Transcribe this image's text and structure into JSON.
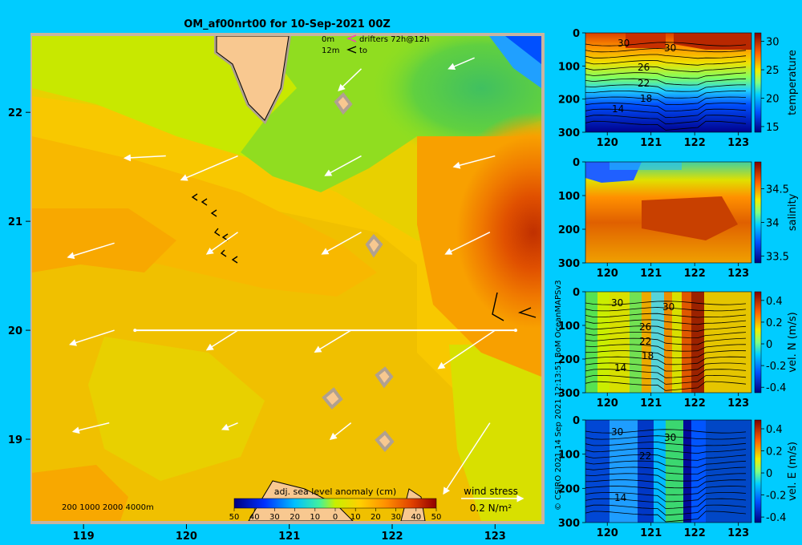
{
  "header": {
    "title": "OM_af00nrt00 for 10-Sep-2021 00Z"
  },
  "legend": {
    "row1_depth": "0m",
    "row2_depth": "12m",
    "drifters_label": "drifters 72h@12h",
    "to_label": "to"
  },
  "colors": {
    "background": "#00ccff",
    "frame": "#c8b4a0",
    "land": "#f8c890",
    "drifter_color": "#ff33cc",
    "section_line": "#ffffff",
    "wind_arrow": "#ffffff"
  },
  "bathymetry_legend": "200  1000  2000  4000m",
  "colorbar": {
    "title": "adj. sea level anomaly (cm)",
    "ticks": [
      "50",
      "40",
      "30",
      "20",
      "10",
      "0",
      "10",
      "20",
      "30",
      "40",
      "50"
    ]
  },
  "wind_legend": {
    "label": "wind stress",
    "scale_label": "0.2 N/m²"
  },
  "credit": "© CSIRO 2021   14 Sep 2021 12:13:51 BoM OceanMAPSv3",
  "chart_data": [
    {
      "type": "heatmap",
      "name": "main-map",
      "title": "OM_af00nrt00 for 10-Sep-2021 00Z",
      "xlim": [
        118.5,
        123.45
      ],
      "ylim": [
        18.25,
        22.7
      ],
      "x_ticks": [
        119,
        120,
        121,
        122,
        123
      ],
      "y_ticks": [
        19,
        20,
        21,
        22
      ],
      "colorbar_title": "adj. sea level anomaly (cm)",
      "colorbar_range": [
        -50,
        50
      ],
      "section_line": {
        "from": [
          119.5,
          20.0
        ],
        "to": [
          123.2,
          20.0
        ]
      },
      "wind_stress_arrows": [
        {
          "lon": 119.8,
          "lat": 21.6,
          "dlon": -0.4,
          "dlat": -0.02
        },
        {
          "lon": 120.5,
          "lat": 21.6,
          "dlon": -0.55,
          "dlat": -0.22
        },
        {
          "lon": 121.7,
          "lat": 21.6,
          "dlon": -0.35,
          "dlat": -0.18
        },
        {
          "lon": 121.7,
          "lat": 22.4,
          "dlon": -0.22,
          "dlat": -0.2
        },
        {
          "lon": 122.8,
          "lat": 22.5,
          "dlon": -0.25,
          "dlat": -0.1
        },
        {
          "lon": 123.0,
          "lat": 21.6,
          "dlon": -0.4,
          "dlat": -0.1
        },
        {
          "lon": 119.3,
          "lat": 20.8,
          "dlon": -0.45,
          "dlat": -0.13
        },
        {
          "lon": 120.5,
          "lat": 20.9,
          "dlon": -0.3,
          "dlat": -0.2
        },
        {
          "lon": 121.7,
          "lat": 20.9,
          "dlon": -0.38,
          "dlat": -0.2
        },
        {
          "lon": 122.95,
          "lat": 20.9,
          "dlon": -0.43,
          "dlat": -0.2
        },
        {
          "lon": 119.3,
          "lat": 20.0,
          "dlon": -0.43,
          "dlat": -0.13
        },
        {
          "lon": 120.5,
          "lat": 20.0,
          "dlon": -0.3,
          "dlat": -0.18
        },
        {
          "lon": 121.6,
          "lat": 20.0,
          "dlon": -0.35,
          "dlat": -0.2
        },
        {
          "lon": 123.0,
          "lat": 20.0,
          "dlon": -0.55,
          "dlat": -0.35
        },
        {
          "lon": 119.25,
          "lat": 19.15,
          "dlon": -0.35,
          "dlat": -0.08
        },
        {
          "lon": 120.5,
          "lat": 19.15,
          "dlon": -0.15,
          "dlat": -0.06
        },
        {
          "lon": 121.6,
          "lat": 19.15,
          "dlon": -0.2,
          "dlat": -0.15
        },
        {
          "lon": 122.95,
          "lat": 19.15,
          "dlon": -0.45,
          "dlat": -0.65
        }
      ]
    },
    {
      "type": "heatmap",
      "name": "temperature-section",
      "xlim": [
        119.5,
        123.3
      ],
      "x_ticks": [
        120,
        121,
        122,
        123
      ],
      "ylim": [
        300,
        0
      ],
      "y_ticks": [
        0,
        100,
        200,
        300
      ],
      "colorbar_label": "temperature",
      "colorbar_ticks": [
        15,
        20,
        25,
        30
      ],
      "contour_labels": [
        "30",
        "30",
        "26",
        "22",
        "18",
        "14"
      ]
    },
    {
      "type": "heatmap",
      "name": "salinity-section",
      "xlim": [
        119.5,
        123.3
      ],
      "x_ticks": [
        120,
        121,
        122,
        123
      ],
      "ylim": [
        300,
        0
      ],
      "y_ticks": [
        0,
        100,
        200,
        300
      ],
      "colorbar_label": "salinity",
      "colorbar_ticks": [
        33.5,
        34,
        34.5
      ]
    },
    {
      "type": "heatmap",
      "name": "vel-n-section",
      "xlim": [
        119.5,
        123.3
      ],
      "x_ticks": [
        120,
        121,
        122,
        123
      ],
      "ylim": [
        300,
        0
      ],
      "y_ticks": [
        0,
        100,
        200,
        300
      ],
      "colorbar_label": "vel. N (m/s)",
      "colorbar_ticks": [
        -0.4,
        -0.2,
        0,
        0.2,
        0.4
      ],
      "contour_labels": [
        "30",
        "30",
        "26",
        "22",
        "18",
        "14"
      ]
    },
    {
      "type": "heatmap",
      "name": "vel-e-section",
      "xlim": [
        119.5,
        123.3
      ],
      "x_ticks": [
        120,
        121,
        122,
        123
      ],
      "ylim": [
        300,
        0
      ],
      "y_ticks": [
        0,
        100,
        200,
        300
      ],
      "colorbar_label": "vel. E (m/s)",
      "colorbar_ticks": [
        -0.4,
        -0.2,
        0,
        0.2,
        0.4
      ],
      "contour_labels": [
        "30",
        "30",
        "22",
        "14"
      ]
    }
  ]
}
